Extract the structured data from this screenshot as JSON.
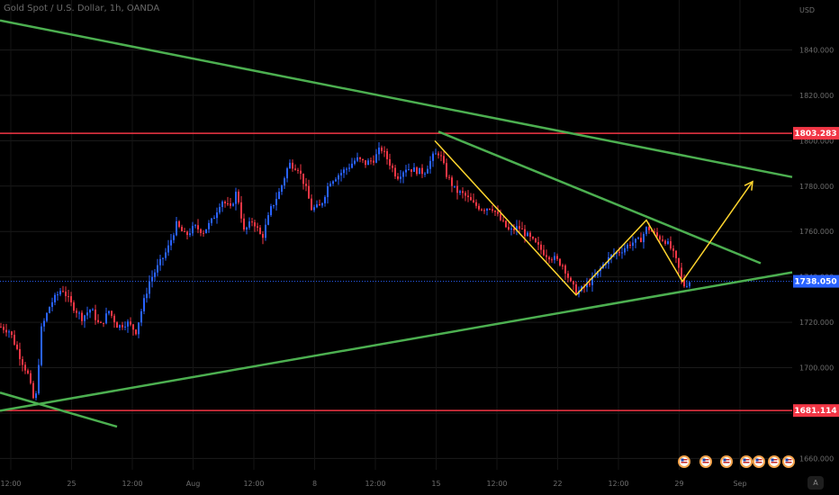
{
  "header": {
    "symbol_title": "Gold Spot / U.S. Dollar, 1h, OANDA"
  },
  "chart_data": {
    "type": "candlestick",
    "currency_label": "USD",
    "ylim": [
      1655,
      1862
    ],
    "y_ticks": [
      "1840.000",
      "1820.000",
      "1800.000",
      "1780.000",
      "1760.000",
      "1740.000",
      "1720.000",
      "1700.000",
      "1680.000",
      "1660.000"
    ],
    "x_ticks": [
      "12:00",
      "25",
      "12:00",
      "Aug",
      "12:00",
      "8",
      "12:00",
      "15",
      "12:00",
      "22",
      "12:00",
      "29",
      "Sep"
    ],
    "price_levels": [
      {
        "label": "1803.283",
        "value": 1803.283,
        "color": "#f23645",
        "style": "solid"
      },
      {
        "label": "1681.114",
        "value": 1681.114,
        "color": "#f23645",
        "style": "solid"
      },
      {
        "label": "1738.050",
        "value": 1738.05,
        "color": "#2962ff",
        "style": "dotted"
      }
    ],
    "trendlines_color": "#4caf50",
    "projection_color": "#ffd52e",
    "candle_up_color": "#2962ff",
    "candle_down_color": "#f23645",
    "path_close": [
      [
        0,
        1718
      ],
      [
        10,
        1716
      ],
      [
        20,
        1706
      ],
      [
        30,
        1697
      ],
      [
        38,
        1683
      ],
      [
        45,
        1717
      ],
      [
        55,
        1728
      ],
      [
        68,
        1735
      ],
      [
        78,
        1728
      ],
      [
        90,
        1722
      ],
      [
        100,
        1726
      ],
      [
        110,
        1718
      ],
      [
        120,
        1725
      ],
      [
        130,
        1718
      ],
      [
        140,
        1720
      ],
      [
        150,
        1716
      ],
      [
        158,
        1728
      ],
      [
        165,
        1738
      ],
      [
        175,
        1745
      ],
      [
        185,
        1752
      ],
      [
        195,
        1763
      ],
      [
        205,
        1758
      ],
      [
        215,
        1762
      ],
      [
        225,
        1760
      ],
      [
        235,
        1765
      ],
      [
        245,
        1774
      ],
      [
        255,
        1770
      ],
      [
        262,
        1778
      ],
      [
        270,
        1760
      ],
      [
        280,
        1765
      ],
      [
        290,
        1757
      ],
      [
        300,
        1770
      ],
      [
        310,
        1778
      ],
      [
        320,
        1790
      ],
      [
        330,
        1788
      ],
      [
        338,
        1780
      ],
      [
        345,
        1770
      ],
      [
        355,
        1771
      ],
      [
        365,
        1782
      ],
      [
        375,
        1785
      ],
      [
        385,
        1788
      ],
      [
        395,
        1792
      ],
      [
        405,
        1790
      ],
      [
        415,
        1792
      ],
      [
        422,
        1797
      ],
      [
        432,
        1790
      ],
      [
        440,
        1784
      ],
      [
        450,
        1788
      ],
      [
        460,
        1787
      ],
      [
        470,
        1786
      ],
      [
        480,
        1793
      ],
      [
        487,
        1795
      ],
      [
        495,
        1785
      ],
      [
        505,
        1778
      ],
      [
        515,
        1776
      ],
      [
        525,
        1772
      ],
      [
        535,
        1770
      ],
      [
        545,
        1771
      ],
      [
        555,
        1765
      ],
      [
        565,
        1760
      ],
      [
        575,
        1762
      ],
      [
        585,
        1758
      ],
      [
        595,
        1754
      ],
      [
        605,
        1750
      ],
      [
        615,
        1748
      ],
      [
        625,
        1745
      ],
      [
        633,
        1737
      ],
      [
        640,
        1733
      ],
      [
        650,
        1736
      ],
      [
        660,
        1740
      ],
      [
        670,
        1746
      ],
      [
        680,
        1750
      ],
      [
        690,
        1752
      ],
      [
        700,
        1755
      ],
      [
        710,
        1756
      ],
      [
        718,
        1762
      ],
      [
        728,
        1758
      ],
      [
        738,
        1756
      ],
      [
        745,
        1752
      ],
      [
        752,
        1745
      ],
      [
        758,
        1736
      ],
      [
        765,
        1738
      ]
    ],
    "trendlines": [
      {
        "name": "upper-trendline",
        "p1": [
          0,
          1853
        ],
        "p2": [
          880,
          1784
        ]
      },
      {
        "name": "mid-trendline",
        "p1": [
          487,
          1804
        ],
        "p2": [
          845,
          1746
        ]
      },
      {
        "name": "lower-trendline",
        "p1": [
          0,
          1681
        ],
        "p2": [
          880,
          1742
        ]
      },
      {
        "name": "short-trendline",
        "p1": [
          0,
          1689
        ],
        "p2": [
          130,
          1674
        ]
      }
    ],
    "projection_path": [
      [
        483,
        1800
      ],
      [
        640,
        1732
      ],
      [
        718,
        1765
      ],
      [
        758,
        1738
      ],
      [
        836,
        1782
      ]
    ]
  },
  "flag_icons": [
    "us-flag-icon",
    "us-flag-icon",
    "us-flag-icon",
    "us-flag-icon",
    "us-flag-icon",
    "us-flag-icon",
    "us-flag-icon"
  ],
  "auto_scale_label": "A"
}
